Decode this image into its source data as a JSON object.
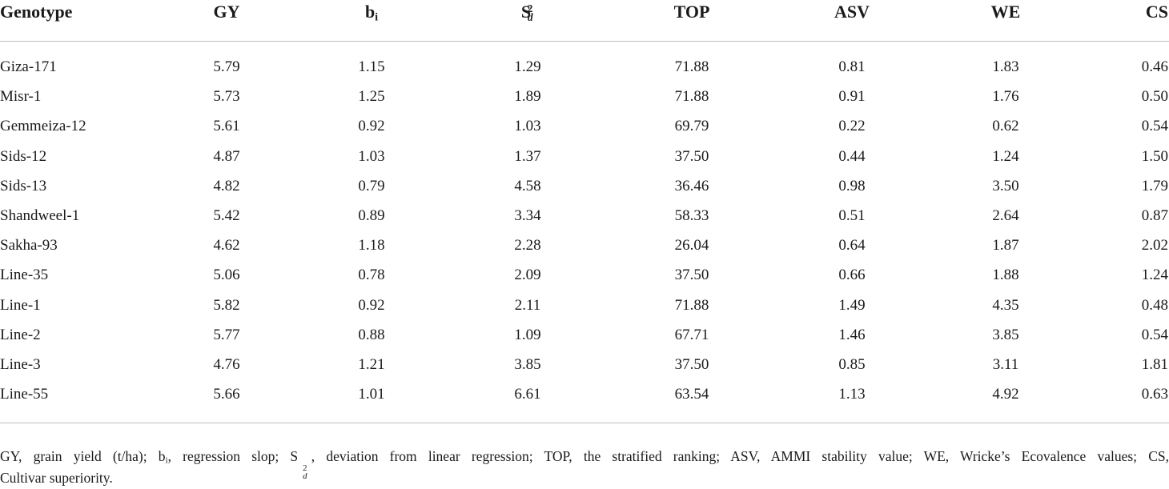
{
  "table": {
    "headers": {
      "genotype": "Genotype",
      "gy": "GY",
      "bi_base": "b",
      "bi_sub": "i",
      "sd_base": "S",
      "sd_sup": "2",
      "sd_sub": "d",
      "top": "TOP",
      "asv": "ASV",
      "we": "WE",
      "cs": "CS"
    },
    "rows": [
      [
        "Giza-171",
        "5.79",
        "1.15",
        "1.29",
        "71.88",
        "0.81",
        "1.83",
        "0.46"
      ],
      [
        "Misr-1",
        "5.73",
        "1.25",
        "1.89",
        "71.88",
        "0.91",
        "1.76",
        "0.50"
      ],
      [
        "Gemmeiza-12",
        "5.61",
        "0.92",
        "1.03",
        "69.79",
        "0.22",
        "0.62",
        "0.54"
      ],
      [
        "Sids-12",
        "4.87",
        "1.03",
        "1.37",
        "37.50",
        "0.44",
        "1.24",
        "1.50"
      ],
      [
        "Sids-13",
        "4.82",
        "0.79",
        "4.58",
        "36.46",
        "0.98",
        "3.50",
        "1.79"
      ],
      [
        "Shandweel-1",
        "5.42",
        "0.89",
        "3.34",
        "58.33",
        "0.51",
        "2.64",
        "0.87"
      ],
      [
        "Sakha-93",
        "4.62",
        "1.18",
        "2.28",
        "26.04",
        "0.64",
        "1.87",
        "2.02"
      ],
      [
        "Line-35",
        "5.06",
        "0.78",
        "2.09",
        "37.50",
        "0.66",
        "1.88",
        "1.24"
      ],
      [
        "Line-1",
        "5.82",
        "0.92",
        "2.11",
        "71.88",
        "1.49",
        "4.35",
        "0.48"
      ],
      [
        "Line-2",
        "5.77",
        "0.88",
        "1.09",
        "67.71",
        "1.46",
        "3.85",
        "0.54"
      ],
      [
        "Line-3",
        "4.76",
        "1.21",
        "3.85",
        "37.50",
        "0.85",
        "3.11",
        "1.81"
      ],
      [
        "Line-55",
        "5.66",
        "1.01",
        "6.61",
        "63.54",
        "1.13",
        "4.92",
        "0.63"
      ]
    ]
  },
  "footnote": {
    "p1": "GY, grain yield (t/ha); b",
    "p1_sub": "i",
    "p2": ", regression slop; S",
    "p2_sup": "2",
    "p2_sub": "d",
    "p3": ", deviation from linear regression; TOP, the stratified ranking; ASV, AMMI stability value; WE, Wricke’s Ecovalence values; CS,",
    "line2": "Cultivar superiority."
  }
}
